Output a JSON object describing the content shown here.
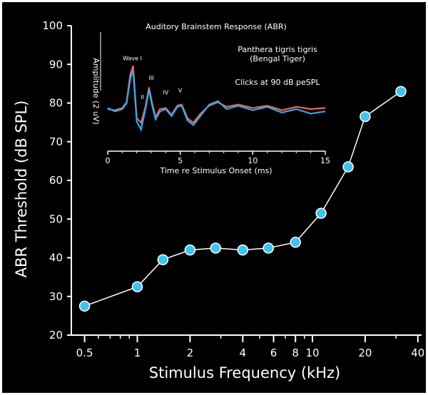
{
  "chart_data": [
    {
      "type": "line",
      "title": "",
      "xlabel": "Stimulus Frequency (kHz)",
      "ylabel": "ABR Threshold (dB SPL)",
      "x_scale": "log",
      "xlim": [
        0.42,
        42
      ],
      "ylim": [
        20,
        100
      ],
      "x_ticks": [
        0.5,
        1,
        2,
        4,
        6,
        8,
        10,
        20,
        40
      ],
      "x_tick_labels": [
        "0.5",
        "1",
        "2",
        "4",
        "6",
        "8",
        "10",
        "20",
        "40"
      ],
      "y_ticks": [
        20,
        30,
        40,
        50,
        60,
        70,
        80,
        90,
        100
      ],
      "y_tick_labels": [
        "20",
        "30",
        "40",
        "50",
        "60",
        "70",
        "80",
        "90",
        "100"
      ],
      "grid": false,
      "colors": {
        "line": "#ffffff",
        "marker": "#3ec3f3",
        "background": "#000000"
      },
      "series": [
        {
          "x": [
            0.5,
            1,
            1.4,
            2,
            2.8,
            4,
            5.6,
            8,
            11.2,
            16,
            20,
            32
          ],
          "y": [
            27.5,
            32.5,
            39.5,
            42,
            42.5,
            42,
            42.5,
            44,
            51.5,
            63.5,
            76.5,
            83
          ]
        }
      ]
    },
    {
      "type": "line",
      "title": "Auditory Brainstem Response (ABR)",
      "xlabel": "Time re Stimulus Onset (ms)",
      "ylabel": "Amplitude (2 uV)",
      "xlim": [
        0,
        15
      ],
      "x_ticks": [
        0,
        5,
        10,
        15
      ],
      "x_tick_labels": [
        "0",
        "5",
        "10",
        "15"
      ],
      "annotations": [
        "Panthera tigris tigris",
        "(Bengal Tiger)",
        "Clicks at 90 dB peSPL"
      ],
      "peak_labels": [
        {
          "label": "Wave I",
          "x": 1.7
        },
        {
          "label": "II",
          "x": 2.4
        },
        {
          "label": "III",
          "x": 3.0
        },
        {
          "label": "IV",
          "x": 4.0
        },
        {
          "label": "V",
          "x": 5.0
        }
      ],
      "colors": {
        "trace_a": "#f4605a",
        "trace_b": "#2fa9ea"
      },
      "series": [
        {
          "x": [
            0,
            0.5,
            1.0,
            1.3,
            1.55,
            1.75,
            2.0,
            2.3,
            2.6,
            2.85,
            3.05,
            3.3,
            3.6,
            4.0,
            4.4,
            4.8,
            5.1,
            5.5,
            5.9,
            6.4,
            7.0,
            7.6,
            8.2,
            9.0,
            10.0,
            11.0,
            12.0,
            13.0,
            14.0,
            15.0
          ],
          "y": [
            0,
            -0.05,
            0.05,
            0.3,
            1.5,
            1.9,
            -0.4,
            -0.6,
            0.1,
            0.95,
            0.3,
            -0.35,
            0.0,
            0.05,
            -0.25,
            0.15,
            0.2,
            -0.4,
            -0.6,
            -0.2,
            0.15,
            0.3,
            0.1,
            0.2,
            0.05,
            0.15,
            -0.05,
            0.1,
            0.0,
            0.05
          ]
        },
        {
          "x": [
            0,
            0.5,
            1.0,
            1.3,
            1.55,
            1.75,
            2.0,
            2.3,
            2.6,
            2.85,
            3.05,
            3.3,
            3.6,
            4.0,
            4.4,
            4.8,
            5.1,
            5.5,
            5.9,
            6.4,
            7.0,
            7.6,
            8.2,
            9.0,
            10.0,
            11.0,
            12.0,
            13.0,
            14.0,
            15.0
          ],
          "y": [
            0.05,
            -0.1,
            0.0,
            0.25,
            1.3,
            1.7,
            -0.55,
            -0.9,
            0.0,
            0.85,
            0.2,
            -0.45,
            -0.1,
            0.0,
            -0.3,
            0.1,
            0.15,
            -0.5,
            -0.7,
            -0.3,
            0.2,
            0.35,
            0.0,
            0.15,
            -0.05,
            0.1,
            -0.15,
            0.0,
            -0.2,
            -0.1
          ]
        }
      ]
    }
  ]
}
